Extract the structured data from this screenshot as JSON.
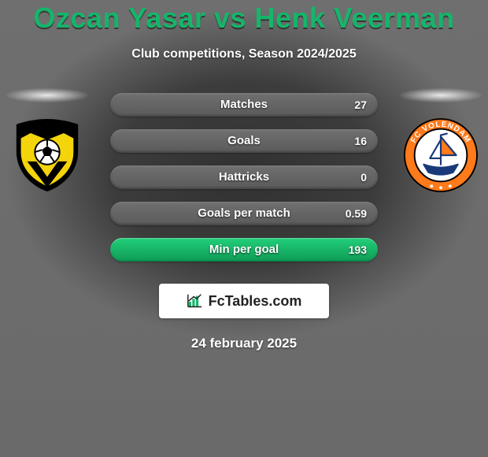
{
  "title": "Ozcan Yasar vs Henk Veerman",
  "subtitle": "Club competitions, Season 2024/2025",
  "date": "24 february 2025",
  "accent_color": "#17b96c",
  "background_color": "#6d6d6d",
  "bar_track_color": "#606060",
  "bars": [
    {
      "label": "Matches",
      "value": "27",
      "fill_pct": 0
    },
    {
      "label": "Goals",
      "value": "16",
      "fill_pct": 0
    },
    {
      "label": "Hattricks",
      "value": "0",
      "fill_pct": 0
    },
    {
      "label": "Goals per match",
      "value": "0.59",
      "fill_pct": 0
    },
    {
      "label": "Min per goal",
      "value": "193",
      "fill_pct": 100
    }
  ],
  "brand": {
    "text": "FcTables.com",
    "icon_color": "#15b56a"
  },
  "left_club": {
    "shield_main": "#f4d40a",
    "shield_dark": "#000000",
    "ball_color": "#ffffff"
  },
  "right_club": {
    "ring_color": "#ff7a1a",
    "inner_bg": "#ffffff",
    "text_color": "#183a7a",
    "label": "FC VOLENDAM"
  }
}
